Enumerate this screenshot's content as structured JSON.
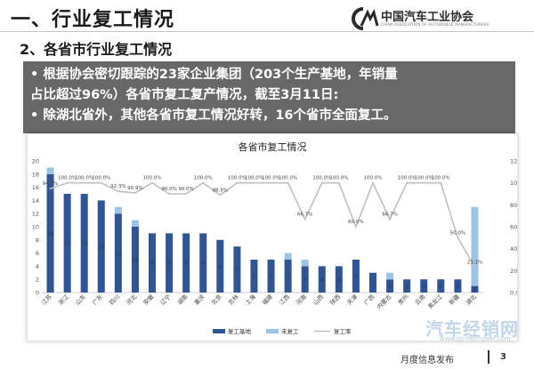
{
  "header": {
    "title": "一、行业复工情况",
    "logo_text": "中国汽车工业协会",
    "logo_en": "CHINA ASSOCIATION OF AUTOMOBILE MANUFACTURERS"
  },
  "subtitle": "2、各省市行业复工情况",
  "bullets": [
    "• 根据协会密切跟踪的23家企业集团（203个生产基地，年销量",
    "   占比超过96%）各省市复工复产情况，截至3月11日:",
    "• 除湖北省外，其他各省市复工情况好转，16个省市全面复工。"
  ],
  "footer": {
    "text": "月度信息发布",
    "page": "3"
  },
  "watermark": {
    "text": "汽车经销网",
    "url": "www.qichejingwei.com"
  },
  "colors": {
    "resumed": "#2f5597",
    "not_resumed": "#9dc3e6",
    "rate_line": "#bfbfbf"
  },
  "chart_data": {
    "type": "bar",
    "title": "各省市复工情况",
    "categories": [
      "江苏",
      "浙江",
      "山东",
      "广东",
      "四川",
      "河北",
      "安徽",
      "辽宁",
      "湖南",
      "重庆",
      "北京",
      "吉林",
      "上海",
      "福建",
      "江西",
      "河南",
      "山西",
      "陕西",
      "天津",
      "广西",
      "内蒙古",
      "贵州",
      "云南",
      "黑龙江",
      "新疆",
      "湖北"
    ],
    "series": [
      {
        "name": "复工基地",
        "values": [
          18,
          15,
          15,
          14,
          12,
          10,
          9,
          9,
          9,
          9,
          8,
          7,
          5,
          5,
          5,
          4,
          4,
          4,
          5,
          3,
          2,
          2,
          2,
          2,
          2,
          1
        ]
      },
      {
        "name": "未复工",
        "values": [
          1,
          0,
          0,
          0,
          1,
          1,
          0,
          0,
          0,
          0,
          0,
          0,
          0,
          0,
          1,
          1,
          0,
          0,
          0,
          0,
          1,
          0,
          0,
          0,
          0,
          12
        ]
      },
      {
        "name": "复工率",
        "values": [
          94.7,
          100.0,
          100.0,
          100.0,
          92.3,
          90.9,
          100.0,
          90.0,
          90.0,
          100.0,
          88.9,
          100.0,
          100.0,
          100.0,
          100.0,
          66.7,
          100.0,
          100.0,
          60.0,
          100.0,
          66.7,
          100.0,
          100.0,
          100.0,
          50.0,
          23.1
        ],
        "axis": "right"
      }
    ],
    "bar_labels": [
      "18",
      "15",
      "15",
      "14",
      "12",
      "10",
      "9",
      "9",
      "9",
      "9",
      "8",
      "7",
      "5",
      "5",
      "5",
      "4",
      "4",
      "4",
      "5",
      "3",
      "2",
      "2",
      "2",
      "2",
      "2",
      "1"
    ],
    "rate_labels": [
      "94.7%",
      "100.0%",
      "100.0%",
      "100.0%",
      "92.3%",
      "90.9%",
      "100.0%",
      "90.0%",
      "90.0%",
      "100.0%",
      "88.9%",
      "100.0%",
      "100.0%",
      "100.0%",
      "100.0%",
      "66.7%",
      "100.0%",
      "100.0%",
      "60.0%",
      "100.0%",
      "66.7%",
      "100.0%",
      "100.0%",
      "100.0%",
      "50.0%",
      "23.1%"
    ],
    "ylim": [
      0,
      20
    ],
    "y_ticks": [
      0,
      2,
      4,
      6,
      8,
      10,
      12,
      14,
      16,
      18,
      20
    ],
    "y2lim": [
      0,
      120
    ],
    "y2_ticks": [
      "0.0%",
      "20.0%",
      "40.0%",
      "60.0%",
      "80.0%",
      "100.0%",
      "120.0%"
    ],
    "legend_position": "bottom",
    "grid": false
  }
}
